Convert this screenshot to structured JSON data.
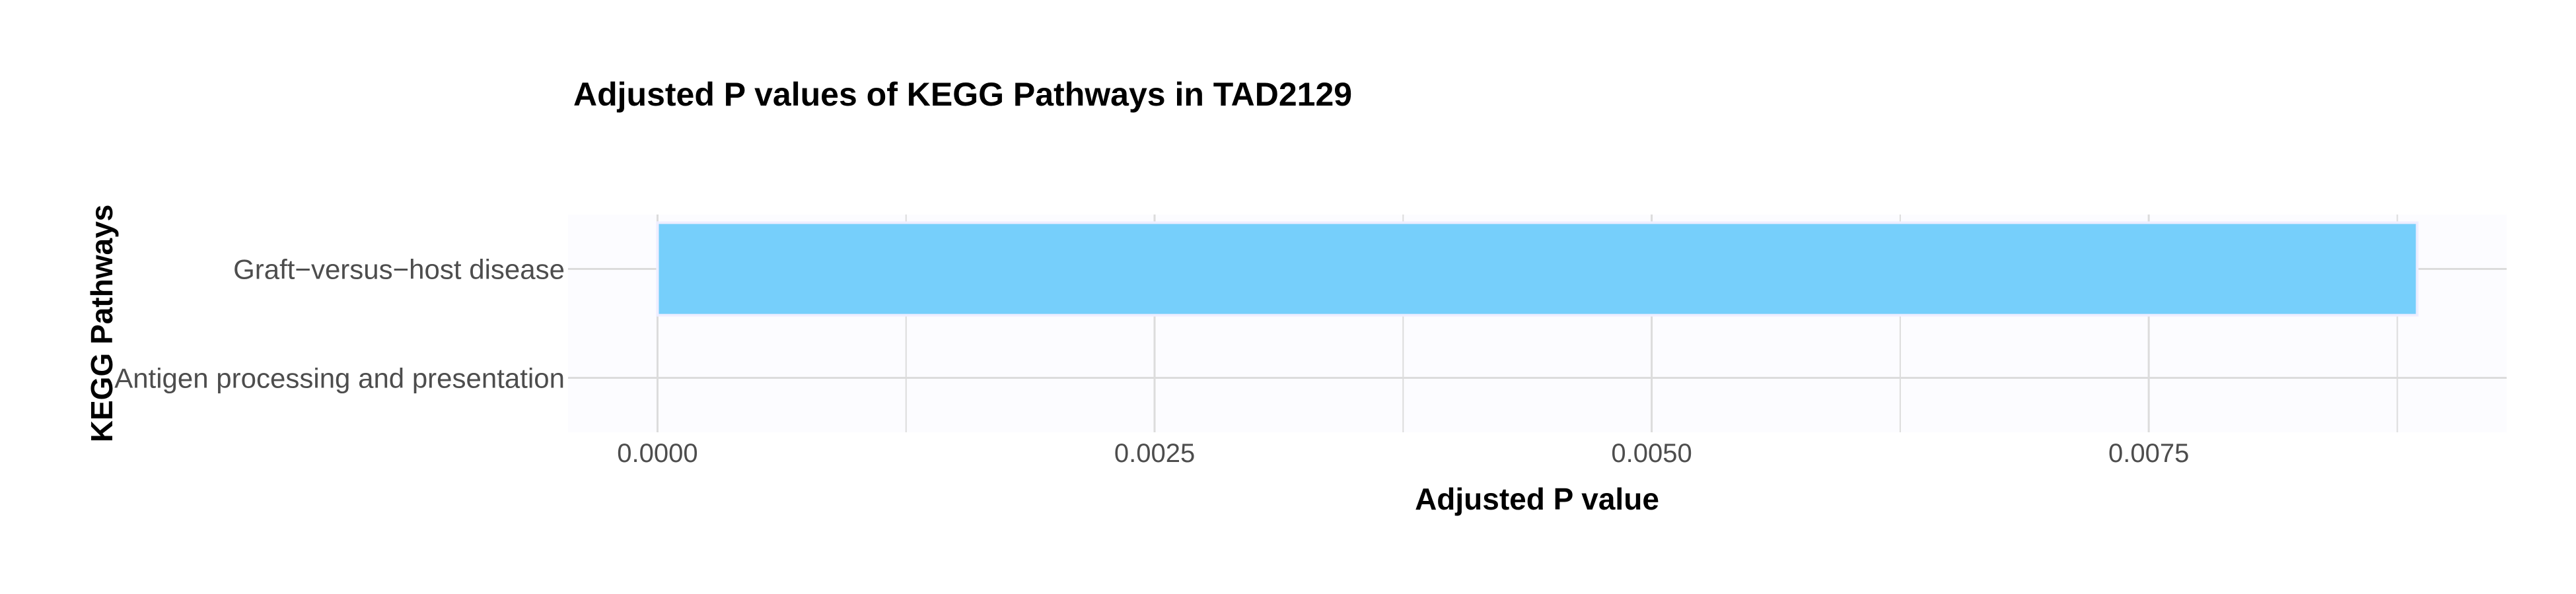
{
  "chart_data": {
    "type": "bar",
    "orientation": "horizontal",
    "title": "Adjusted P values of KEGG Pathways in TAD2129",
    "xlabel": "Adjusted P value",
    "ylabel": "KEGG Pathways",
    "categories": [
      "Graft−versus−host disease",
      "Antigen processing and presentation"
    ],
    "values": [
      0.00885,
      0
    ],
    "xlim": [
      -0.00045,
      0.0093
    ],
    "xticks": [
      0,
      0.0025,
      0.005,
      0.0075
    ],
    "xtick_labels": [
      "0.0000",
      "0.0025",
      "0.0050",
      "0.0075"
    ],
    "grid": true,
    "bar_color": "#76CFFB",
    "bar_outline_color": "#eeeeff",
    "grid_color": "#dcdcdc",
    "panel_background": "#fcfcff"
  }
}
